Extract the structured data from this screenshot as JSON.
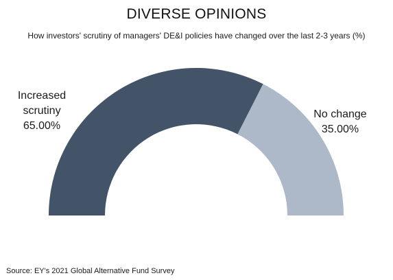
{
  "title": "DIVERSE OPINIONS",
  "subtitle": "How investors' scrutiny of managers' DE&I policies have changed over the last 2-3 years (%)",
  "source": "Source: EY's 2021 Global Alternative Fund Survey",
  "chart_data": {
    "type": "pie",
    "variant": "half-donut",
    "title": "DIVERSE OPINIONS",
    "subtitle": "How investors' scrutiny of managers' DE&I policies have changed over the last 2-3 years (%)",
    "categories": [
      "Increased scrutiny",
      "No change"
    ],
    "values": [
      65.0,
      35.0
    ],
    "value_labels": [
      "65.00%",
      "35.00%"
    ],
    "colors": [
      "#435469",
      "#adb8c9"
    ],
    "legend": "none"
  }
}
